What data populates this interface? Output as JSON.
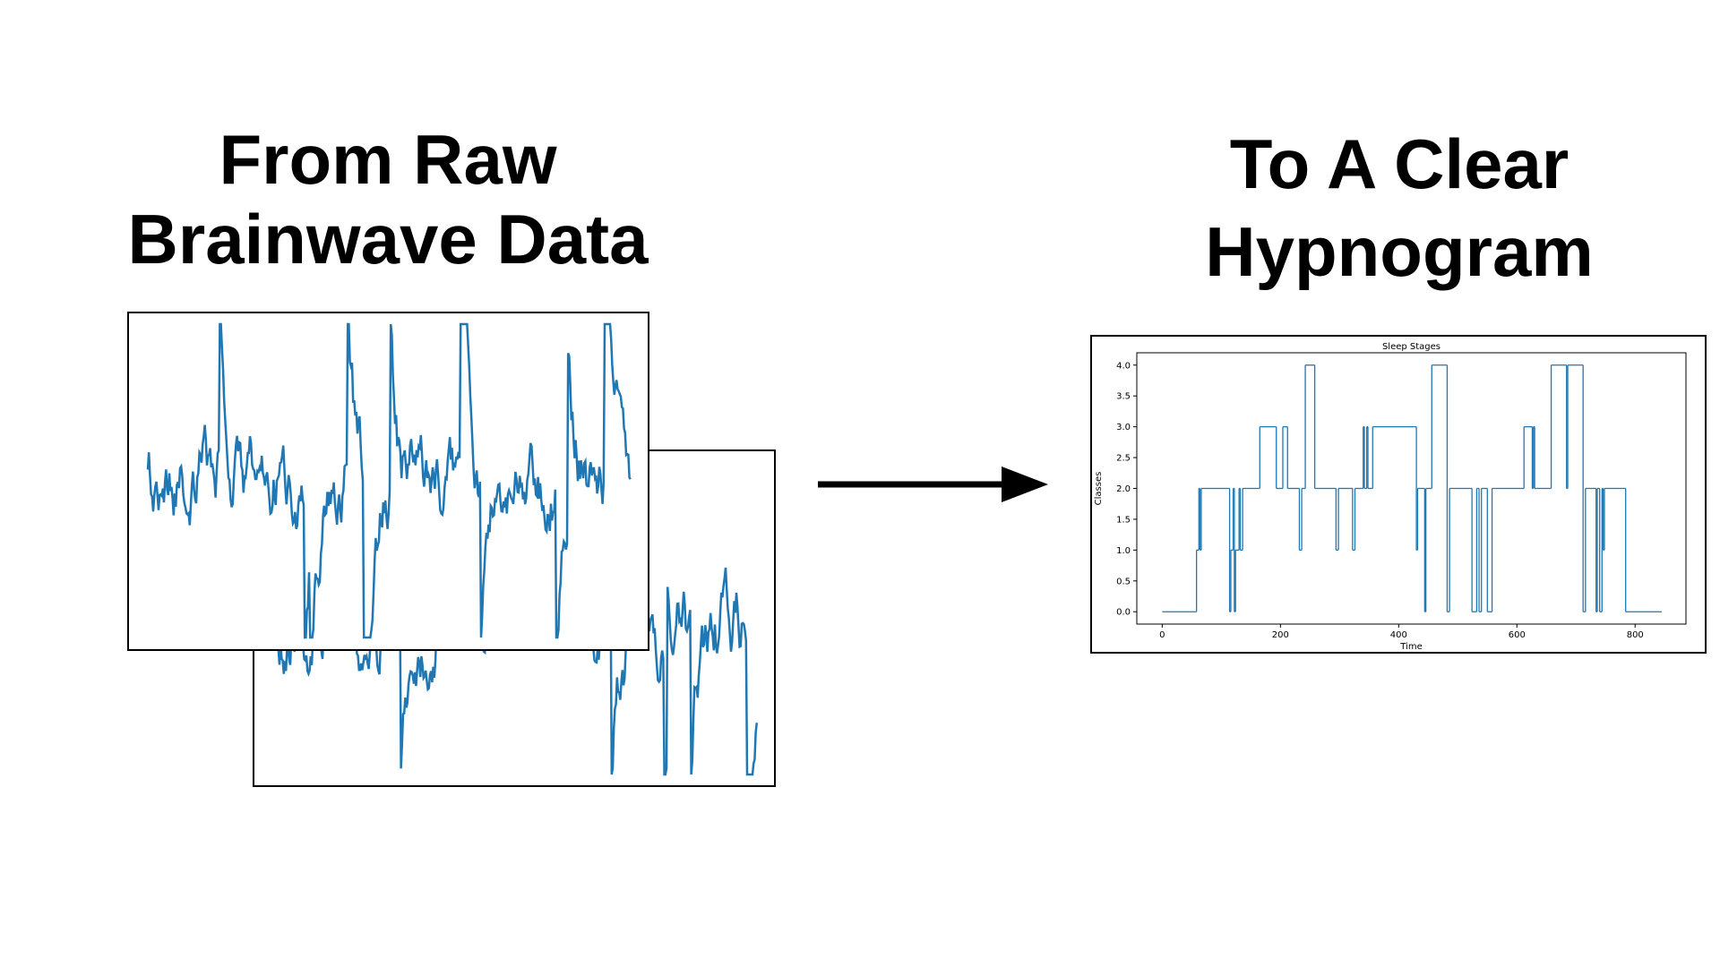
{
  "left_heading": {
    "lines": [
      "From Raw",
      "Brainwave Data"
    ]
  },
  "right_heading": {
    "lines": [
      "To A Clear",
      "Hypnogram"
    ]
  },
  "chart_data": {
    "type": "line",
    "step": "post",
    "title": "Sleep Stages",
    "x_label": "Time",
    "y_label": "Classes",
    "color": "#1f77b4",
    "x": [
      0,
      58,
      62,
      64,
      66,
      114,
      116,
      120,
      122,
      124,
      130,
      132,
      136,
      165,
      193,
      204,
      212,
      232,
      236,
      242,
      258,
      294,
      298,
      322,
      326,
      340,
      342,
      346,
      348,
      356,
      430,
      432,
      444,
      446,
      456,
      482,
      486,
      524,
      532,
      536,
      540,
      550,
      558,
      612,
      626,
      628,
      630,
      658,
      684,
      686,
      712,
      716,
      734,
      736,
      740,
      744,
      746,
      748,
      784,
      845
    ],
    "values": [
      0,
      1,
      2,
      1,
      2,
      0,
      1,
      2,
      0,
      1,
      2,
      1,
      2,
      3,
      2,
      3,
      2,
      1,
      2,
      4,
      2,
      1,
      2,
      1,
      2,
      3,
      2,
      3,
      2,
      3,
      1,
      2,
      0,
      2,
      4,
      0,
      2,
      0,
      2,
      0,
      2,
      0,
      2,
      3,
      2,
      3,
      2,
      4,
      2,
      4,
      0,
      2,
      0,
      2,
      0,
      2,
      1,
      2,
      0,
      0
    ],
    "xlim": [
      -43,
      886
    ],
    "ylim": [
      -0.2,
      4.2
    ],
    "xticks": [
      0,
      200,
      400,
      600,
      800
    ],
    "yticks": [
      {
        "value": 0,
        "label": "0.0"
      },
      {
        "value": 0.5,
        "label": "0.5"
      },
      {
        "value": 1,
        "label": "1.0"
      },
      {
        "value": 1.5,
        "label": "1.5"
      },
      {
        "value": 2,
        "label": "2.0"
      },
      {
        "value": 2.5,
        "label": "2.5"
      },
      {
        "value": 3,
        "label": "3.0"
      },
      {
        "value": 3.5,
        "label": "3.5"
      },
      {
        "value": 4,
        "label": "4.0"
      }
    ]
  }
}
